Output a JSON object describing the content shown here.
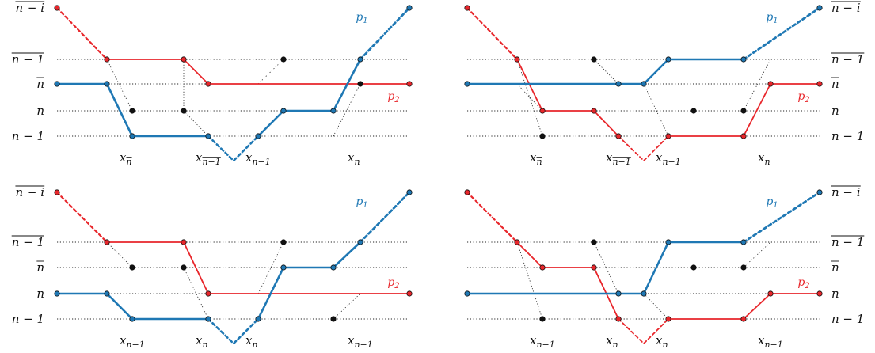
{
  "colors": {
    "p1": "#1f78b4",
    "p2": "#e8262b",
    "grid": "#222222",
    "dot": "#111111"
  },
  "path_labels": {
    "p1": "p",
    "p1_sub": "1",
    "p2": "p",
    "p2_sub": "2"
  },
  "level_labels": {
    "n_minus_i_bar": "n − i",
    "n_minus_1_bar": "n − 1",
    "n_bar": "n",
    "n": "n",
    "n_minus_1": "n − 1"
  },
  "x_labels": {
    "x": "x",
    "sub_nbar": "n",
    "sub_nm1bar": "n−1",
    "sub_nm1": "n−1",
    "sub_n": "n"
  },
  "panels": [
    {
      "id": "top-left",
      "label_side": "left",
      "level_order": [
        "n_minus_1_bar",
        "n_bar",
        "n",
        "n_minus_1"
      ],
      "x_label_keys": [
        "sub_nbar",
        "sub_nm1bar",
        "sub_nm1",
        "sub_n"
      ],
      "x_label_overline": [
        true,
        true,
        false,
        false
      ]
    },
    {
      "id": "top-right",
      "label_side": "right",
      "level_order": [
        "n_minus_1_bar",
        "n_bar",
        "n",
        "n_minus_1"
      ],
      "x_label_keys": [
        "sub_nbar",
        "sub_nm1bar",
        "sub_nm1",
        "sub_n"
      ],
      "x_label_overline": [
        true,
        true,
        false,
        false
      ]
    },
    {
      "id": "bottom-left",
      "label_side": "left",
      "level_order": [
        "n_minus_1_bar",
        "n_bar",
        "n",
        "n_minus_1"
      ],
      "x_label_keys": [
        "sub_nm1bar",
        "sub_nbar",
        "sub_n",
        "sub_nm1"
      ],
      "x_label_overline": [
        true,
        true,
        false,
        false
      ]
    },
    {
      "id": "bottom-right",
      "label_side": "right",
      "level_order": [
        "n_minus_1_bar",
        "n_bar",
        "n",
        "n_minus_1"
      ],
      "x_label_keys": [
        "sub_nm1bar",
        "sub_nbar",
        "sub_n",
        "sub_nm1"
      ],
      "x_label_overline": [
        true,
        true,
        false,
        false
      ]
    }
  ]
}
